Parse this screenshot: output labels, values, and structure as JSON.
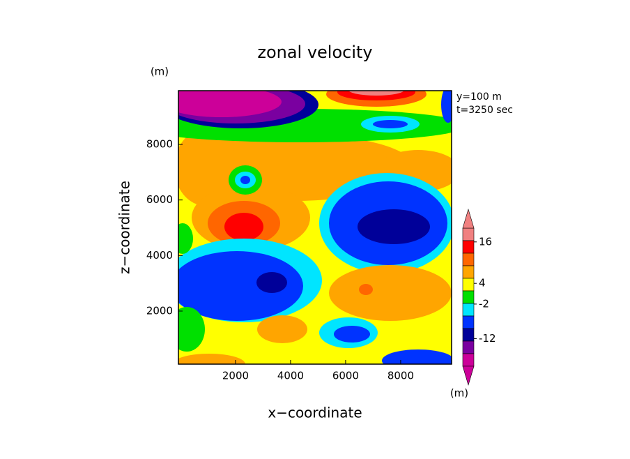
{
  "chart_data": {
    "type": "contourf",
    "title": "zonal velocity",
    "x_label": "x−coordinate",
    "y_label": "z−coordinate",
    "x_unit": "(m)",
    "y_unit": "(m)",
    "annotations": [
      "y=100 m",
      "t=3250 sec"
    ],
    "xlim": [
      -75,
      9850
    ],
    "ylim": [
      90,
      9935
    ],
    "xticks": [
      2000,
      4000,
      6000,
      8000
    ],
    "yticks": [
      2000,
      4000,
      6000,
      8000
    ],
    "colorbar": {
      "colors": [
        "#f08080",
        "#ff0000",
        "#ff6600",
        "#ffa500",
        "#ffff00",
        "#00e000",
        "#00e5ff",
        "#0033ff",
        "#000099",
        "#7a00a0",
        "#cc0099"
      ],
      "clim": [
        -20,
        20
      ],
      "ticks": [
        16,
        4,
        -2,
        -12
      ]
    }
  }
}
